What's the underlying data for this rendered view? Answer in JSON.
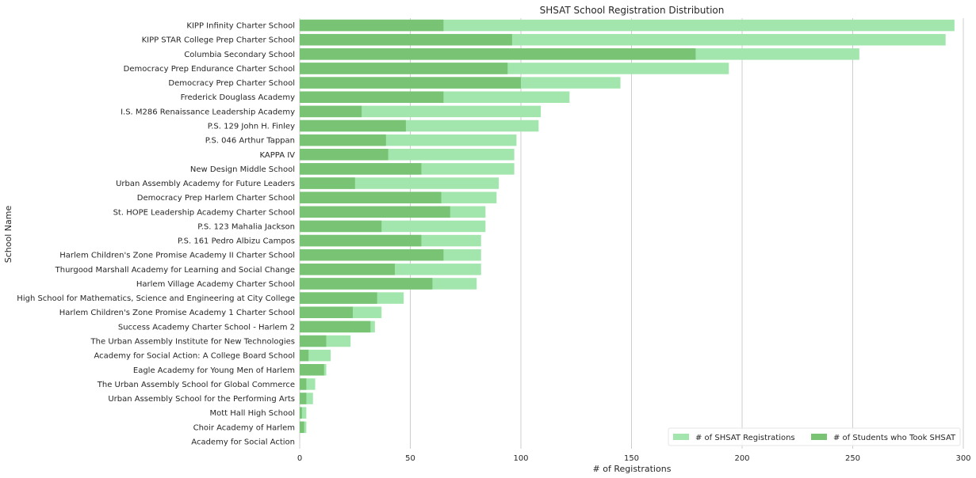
{
  "chart_data": {
    "type": "bar",
    "orientation": "horizontal",
    "title": "SHSAT School Registration Distribution",
    "xlabel": "# of Registrations",
    "ylabel": "School Name",
    "xlim": [
      0,
      300
    ],
    "xticks": [
      0,
      50,
      100,
      150,
      200,
      250,
      300
    ],
    "grid": "vertical",
    "legend_position": "bottom-right",
    "categories": [
      "KIPP Infinity Charter School",
      "KIPP STAR College Prep Charter School",
      "Columbia Secondary School",
      "Democracy Prep Endurance Charter School",
      "Democracy Prep Charter School",
      "Frederick Douglass Academy",
      "I.S. M286 Renaissance Leadership Academy",
      "P.S. 129 John H. Finley",
      "P.S. 046 Arthur Tappan",
      "KAPPA IV",
      "New Design Middle School",
      "Urban Assembly Academy for Future Leaders",
      "Democracy Prep Harlem Charter School",
      "St. HOPE Leadership Academy Charter School",
      "P.S. 123 Mahalia Jackson",
      "P.S. 161 Pedro Albizu Campos",
      "Harlem Children's Zone Promise Academy II Charter School",
      "Thurgood Marshall Academy for Learning and Social Change",
      "Harlem Village Academy Charter School",
      "High School for Mathematics, Science and Engineering at City College",
      "Harlem Children's Zone Promise Academy 1 Charter School",
      "Success Academy Charter School - Harlem 2",
      "The Urban Assembly Institute for New Technologies",
      "Academy for Social Action: A College Board School",
      "Eagle Academy for Young Men of Harlem",
      "The Urban Assembly School for Global Commerce",
      "Urban Assembly School for the Performing Arts",
      "Mott Hall High School",
      "Choir Academy of Harlem",
      "Academy for Social Action"
    ],
    "series": [
      {
        "name": "# of SHSAT Registrations",
        "color": "#a2e6ae",
        "values": [
          296,
          292,
          253,
          194,
          145,
          122,
          109,
          108,
          98,
          97,
          97,
          90,
          89,
          84,
          84,
          82,
          82,
          82,
          80,
          47,
          37,
          34,
          23,
          14,
          12,
          7,
          6,
          3,
          3,
          0
        ]
      },
      {
        "name": "# of Students who Took SHSAT",
        "color": "#78c374",
        "values": [
          65,
          96,
          179,
          94,
          100,
          65,
          28,
          48,
          39,
          40,
          55,
          25,
          64,
          68,
          37,
          55,
          65,
          43,
          60,
          35,
          24,
          32,
          12,
          4,
          11,
          3,
          3,
          1,
          2,
          0
        ]
      }
    ]
  }
}
